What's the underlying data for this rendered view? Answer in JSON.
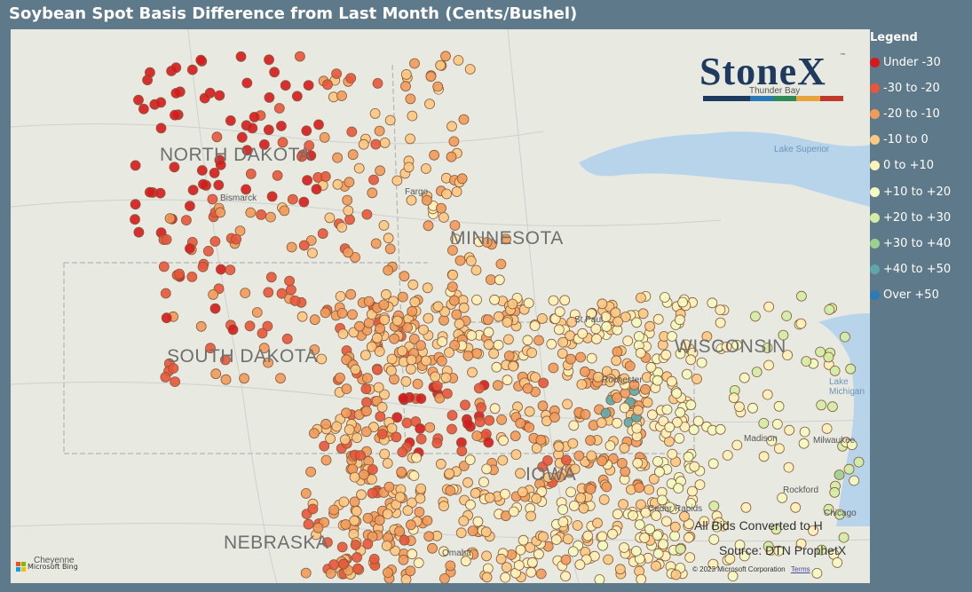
{
  "title": "Soybean Spot Basis Difference from Last Month (Cents/Bushel)",
  "legend": {
    "title": "Legend",
    "items": [
      {
        "label": "Under -30",
        "color": "#d7191c"
      },
      {
        "label": "-30 to -20",
        "color": "#e8553a"
      },
      {
        "label": "-20 to -10",
        "color": "#f29a5a"
      },
      {
        "label": "-10 to 0",
        "color": "#fcc882"
      },
      {
        "label": "0 to +10",
        "color": "#fff1b8"
      },
      {
        "label": "+10 to +20",
        "color": "#f4fbc2"
      },
      {
        "label": "+20 to +30",
        "color": "#d3eda4"
      },
      {
        "label": "+30 to +40",
        "color": "#9bd18e"
      },
      {
        "label": "+40 to +50",
        "color": "#5fa8a8"
      },
      {
        "label": "Over +50",
        "color": "#2c7bb6"
      }
    ]
  },
  "logo": {
    "text": "StoneX",
    "tm": "™",
    "bar_colors": [
      "#1f3a5f",
      "#1f3a5f",
      "#2a7ab8",
      "#2e8b57",
      "#e8a33a",
      "#c0392b"
    ]
  },
  "map": {
    "states": [
      "NORTH DAKOTA",
      "MINNESOTA",
      "SOUTH DAKOTA",
      "WISCONSIN",
      "IOWA",
      "NEBRASKA"
    ],
    "cities": [
      "Thunder Bay",
      "Lake Superior",
      "Bismarck",
      "Fargo",
      "St Paul",
      "Rochester",
      "Madison",
      "Milwaukee",
      "Rockford",
      "Chicago",
      "Cedar Rapids",
      "Omaha",
      "Cheyenne",
      "Lake Michigan"
    ],
    "points_summary": "Colored dots indicate spot basis change per location"
  },
  "footnotes": {
    "line1": "All Bids Converted to H",
    "line2": "Source: DTN ProphetX"
  },
  "copyright": {
    "text": "© 2023 Microsoft Corporation",
    "terms": "Terms"
  },
  "bing": {
    "text": "Microsoft Bing"
  }
}
